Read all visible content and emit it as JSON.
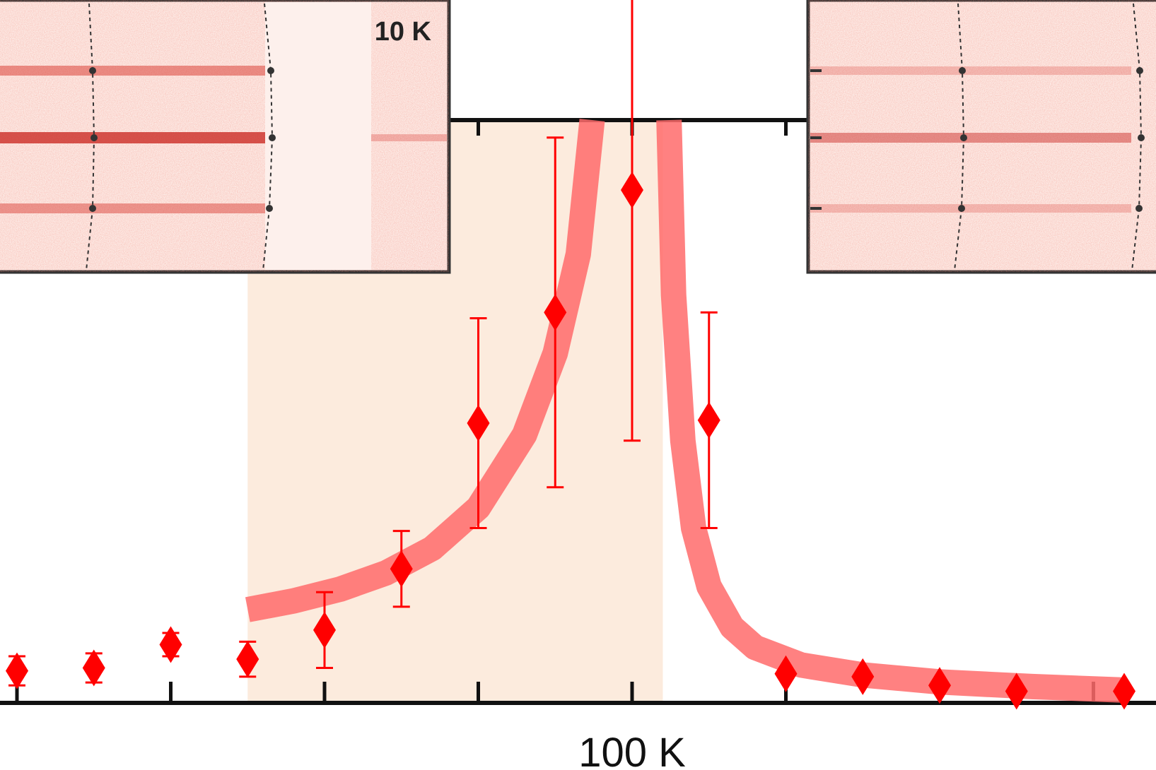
{
  "chart_data": {
    "type": "scatter",
    "title": "",
    "xlabel": "",
    "ylabel": "",
    "xlim": [
      62,
      134
    ],
    "ylim": [
      0,
      100
    ],
    "x_tick_values": [
      62,
      72,
      82,
      92,
      102,
      112,
      122,
      132
    ],
    "x_tick_labels": [
      {
        "value": 100,
        "label": "100 K"
      }
    ],
    "shaded_region": {
      "x_start": 77,
      "x_end": 104,
      "color": "#fcebdd"
    },
    "colors": {
      "points": "#ff0000",
      "fit_curve": "#ff6b6b",
      "axes": "#111111",
      "inset_fill": "#fdeae5"
    },
    "series": [
      {
        "points": [
          {
            "x": 62,
            "y": 5.5,
            "err": 2.5
          },
          {
            "x": 67,
            "y": 6.0,
            "err": 2.5
          },
          {
            "x": 72,
            "y": 10.0,
            "err": 2.0
          },
          {
            "x": 77,
            "y": 7.5,
            "err": 3.0
          },
          {
            "x": 82,
            "y": 12.5,
            "err": 6.5
          },
          {
            "x": 87,
            "y": 23.0,
            "err": 6.5
          },
          {
            "x": 92,
            "y": 48.0,
            "err": 18.0
          },
          {
            "x": 97,
            "y": 67.0,
            "err": 30.0
          },
          {
            "x": 102,
            "y": 88.0,
            "err": 43.0
          },
          {
            "x": 107,
            "y": 48.5,
            "err": 18.5
          },
          {
            "x": 112,
            "y": 5.0,
            "err": 0
          },
          {
            "x": 117,
            "y": 4.5,
            "err": 0
          },
          {
            "x": 122,
            "y": 3.0,
            "err": 0
          },
          {
            "x": 127,
            "y": 2.0,
            "err": 0
          },
          {
            "x": 134,
            "y": 2.0,
            "err": 0
          }
        ]
      }
    ],
    "fit_curves": [
      {
        "points": [
          [
            77,
            16
          ],
          [
            80,
            17.5
          ],
          [
            83,
            19.5
          ],
          [
            86,
            22.3
          ],
          [
            89,
            26.5
          ],
          [
            92,
            33.5
          ],
          [
            95,
            46
          ],
          [
            97,
            60
          ],
          [
            98.5,
            77
          ],
          [
            99.4,
            100
          ]
        ]
      },
      {
        "points": [
          [
            104.4,
            100
          ],
          [
            104.7,
            70
          ],
          [
            105.3,
            45
          ],
          [
            106,
            30
          ],
          [
            107,
            20
          ],
          [
            108.5,
            13
          ],
          [
            110,
            9.5
          ],
          [
            113,
            6.5
          ],
          [
            117,
            4.8
          ],
          [
            122,
            3.6
          ],
          [
            128,
            2.8
          ],
          [
            134,
            2.2
          ]
        ]
      }
    ],
    "insets": [
      {
        "label": "10 K",
        "position": "top-left",
        "lines": 3
      },
      {
        "label": "",
        "position": "top-right",
        "lines": 3
      }
    ]
  }
}
